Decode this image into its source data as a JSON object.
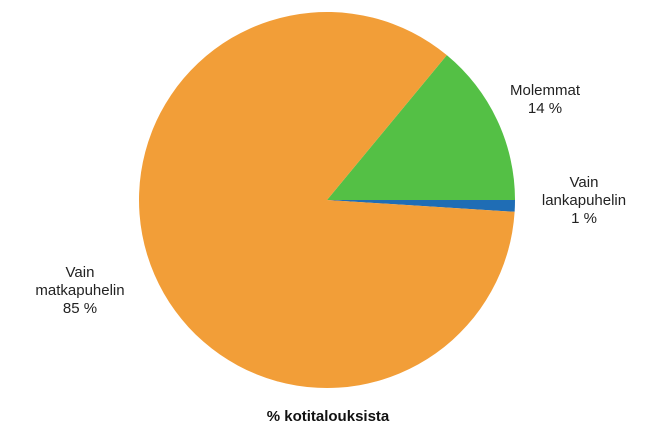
{
  "chart_data": {
    "type": "pie",
    "title": "% kotitalouksista",
    "categories": [
      "Molemmat",
      "Vain lankapuhelin",
      "Vain matkapuhelin"
    ],
    "values": [
      14,
      1,
      85
    ],
    "value_labels": [
      "14 %",
      "1 %",
      "85 %"
    ],
    "colors": [
      "#54c045",
      "#1f6db5",
      "#f29e38"
    ]
  }
}
